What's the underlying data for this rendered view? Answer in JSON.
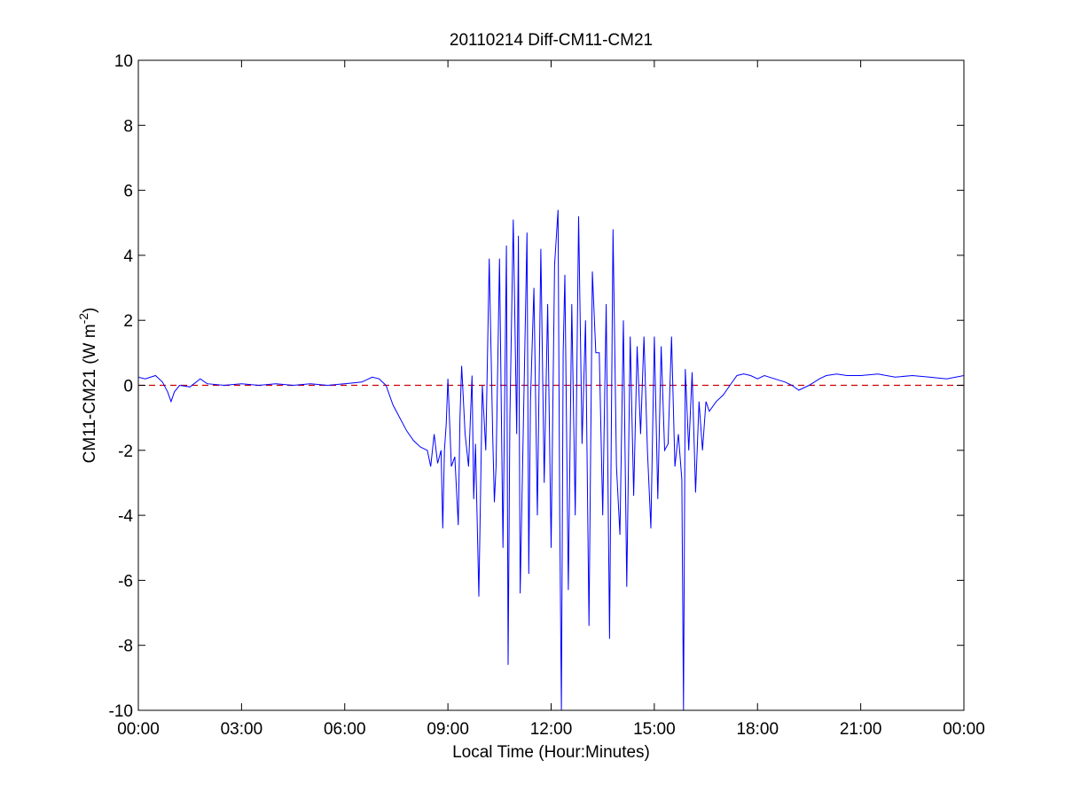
{
  "chart_data": {
    "type": "line",
    "title": "20110214 Diff-CM11-CM21",
    "xlabel": "Local Time (Hour:Minutes)",
    "ylabel": "CM11-CM21 (W m",
    "ylabel_sup": "-2",
    "ylabel_close": ")",
    "xlim": [
      0,
      24
    ],
    "ylim": [
      -10,
      10
    ],
    "x_unit": "hours",
    "xticks": [
      0,
      3,
      6,
      9,
      12,
      15,
      18,
      21,
      24
    ],
    "xtick_labels": [
      "00:00",
      "03:00",
      "06:00",
      "09:00",
      "12:00",
      "15:00",
      "18:00",
      "21:00",
      "00:00"
    ],
    "yticks": [
      -10,
      -8,
      -6,
      -4,
      -2,
      0,
      2,
      4,
      6,
      8,
      10
    ],
    "ytick_labels": [
      "-10",
      "-8",
      "-6",
      "-4",
      "-2",
      "0",
      "2",
      "4",
      "6",
      "8",
      "10"
    ],
    "grid": false,
    "reference_line": {
      "y": 0,
      "color": "#cc0000",
      "style": "dashed"
    },
    "series": [
      {
        "color": "#0000ff",
        "x": [
          0,
          0.2,
          0.5,
          0.7,
          0.85,
          0.95,
          1.05,
          1.2,
          1.5,
          1.8,
          2.0,
          2.5,
          3.0,
          3.5,
          4.0,
          4.5,
          5.0,
          5.5,
          6.0,
          6.5,
          6.8,
          7.0,
          7.2,
          7.4,
          7.6,
          7.8,
          8.0,
          8.2,
          8.4,
          8.5,
          8.6,
          8.7,
          8.8,
          8.85,
          8.9,
          8.95,
          9.0,
          9.1,
          9.2,
          9.3,
          9.35,
          9.4,
          9.5,
          9.6,
          9.7,
          9.75,
          9.8,
          9.9,
          10.0,
          10.1,
          10.2,
          10.3,
          10.35,
          10.4,
          10.5,
          10.6,
          10.7,
          10.75,
          10.8,
          10.9,
          11.0,
          11.05,
          11.1,
          11.2,
          11.3,
          11.35,
          11.4,
          11.5,
          11.6,
          11.7,
          11.8,
          11.9,
          12.0,
          12.1,
          12.2,
          12.25,
          12.3,
          12.35,
          12.4,
          12.5,
          12.6,
          12.7,
          12.8,
          12.9,
          13.0,
          13.1,
          13.2,
          13.3,
          13.4,
          13.5,
          13.6,
          13.7,
          13.8,
          13.9,
          14.0,
          14.1,
          14.2,
          14.3,
          14.4,
          14.5,
          14.6,
          14.7,
          14.8,
          14.9,
          15.0,
          15.1,
          15.2,
          15.3,
          15.4,
          15.5,
          15.6,
          15.7,
          15.8,
          15.85,
          15.9,
          16.0,
          16.1,
          16.2,
          16.3,
          16.4,
          16.5,
          16.6,
          16.8,
          17.0,
          17.2,
          17.4,
          17.6,
          17.8,
          18.0,
          18.2,
          18.5,
          18.8,
          19.0,
          19.2,
          19.5,
          19.8,
          20.0,
          20.3,
          20.6,
          21.0,
          21.5,
          22.0,
          22.5,
          23.0,
          23.5,
          24.0
        ],
        "y": [
          0.25,
          0.2,
          0.3,
          0.1,
          -0.2,
          -0.5,
          -0.2,
          0.0,
          -0.05,
          0.2,
          0.05,
          0.0,
          0.05,
          0.0,
          0.05,
          0.0,
          0.05,
          0.0,
          0.05,
          0.1,
          0.25,
          0.2,
          0.0,
          -0.6,
          -1.0,
          -1.4,
          -1.7,
          -1.9,
          -2.0,
          -2.5,
          -1.5,
          -2.4,
          -2.0,
          -4.4,
          -2.0,
          -1.2,
          0.2,
          -2.5,
          -2.2,
          -4.3,
          -1.0,
          0.6,
          -1.5,
          -2.5,
          0.3,
          -3.5,
          -1.8,
          -6.5,
          0.0,
          -2.0,
          3.9,
          -1.5,
          -3.6,
          -2.5,
          3.9,
          -5.0,
          4.3,
          -8.6,
          -1.0,
          5.1,
          -1.5,
          4.6,
          -6.4,
          -0.8,
          4.7,
          -5.8,
          -0.5,
          3.0,
          -4.0,
          4.2,
          -3.0,
          2.5,
          -5.0,
          3.7,
          5.4,
          -4.0,
          -10.0,
          1.0,
          3.4,
          -6.3,
          2.5,
          -4.0,
          5.2,
          -1.8,
          2.0,
          -7.4,
          3.5,
          1.0,
          1.0,
          -4.0,
          2.5,
          -7.8,
          4.8,
          -2.5,
          -4.6,
          2.0,
          -6.2,
          1.5,
          -3.4,
          1.2,
          -1.5,
          1.5,
          -2.0,
          -4.4,
          1.5,
          -3.5,
          1.2,
          -2.0,
          -1.8,
          1.5,
          -2.5,
          -1.5,
          -2.9,
          -10.0,
          0.5,
          -2.0,
          0.4,
          -3.3,
          -0.5,
          -2.0,
          -0.5,
          -0.8,
          -0.5,
          -0.3,
          0.0,
          0.3,
          0.35,
          0.3,
          0.2,
          0.3,
          0.2,
          0.1,
          0.0,
          -0.15,
          0.0,
          0.2,
          0.3,
          0.35,
          0.3,
          0.3,
          0.35,
          0.25,
          0.3,
          0.25,
          0.2,
          0.3
        ]
      }
    ]
  }
}
